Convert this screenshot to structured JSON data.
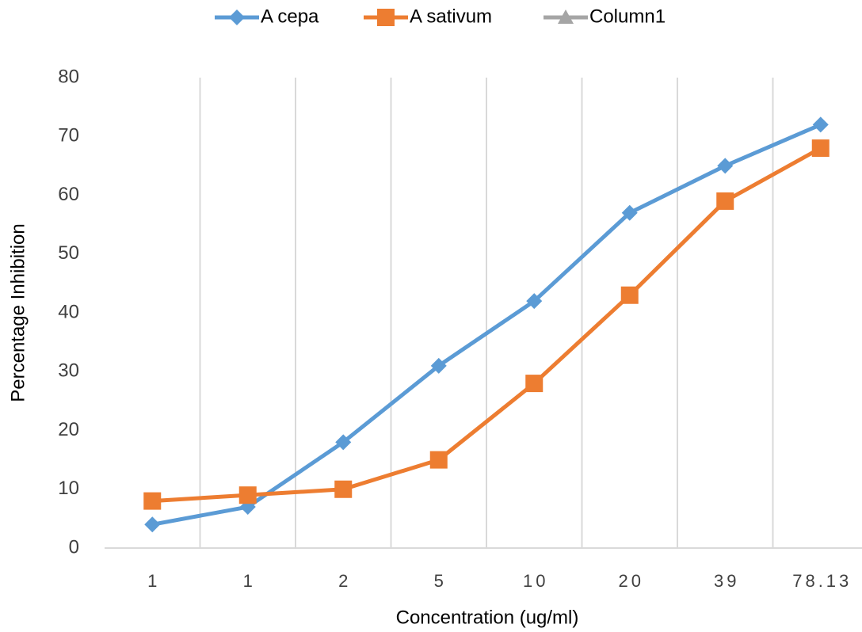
{
  "chart_data": {
    "type": "line",
    "categories": [
      "1",
      "1",
      "2",
      "5",
      "10",
      "20",
      "39",
      "78.13"
    ],
    "series": [
      {
        "name": "A cepa",
        "color": "#5b9bd5",
        "marker": "diamond",
        "values": [
          4,
          7,
          18,
          31,
          42,
          57,
          65,
          72
        ]
      },
      {
        "name": "A sativum",
        "color": "#ed7d31",
        "marker": "square",
        "values": [
          8,
          9,
          10,
          15,
          28,
          43,
          59,
          68
        ]
      },
      {
        "name": "Column1",
        "color": "#a5a5a5",
        "marker": "triangle",
        "values": [
          null,
          null,
          null,
          null,
          null,
          null,
          null,
          null
        ]
      }
    ],
    "ylim": [
      0,
      80
    ],
    "yticks": [
      0,
      10,
      20,
      30,
      40,
      50,
      60,
      70,
      80
    ],
    "xlabel": "Concentration (ug/ml)",
    "ylabel": "Percentage Inhibition",
    "grid": "vertical",
    "legend": "top"
  }
}
